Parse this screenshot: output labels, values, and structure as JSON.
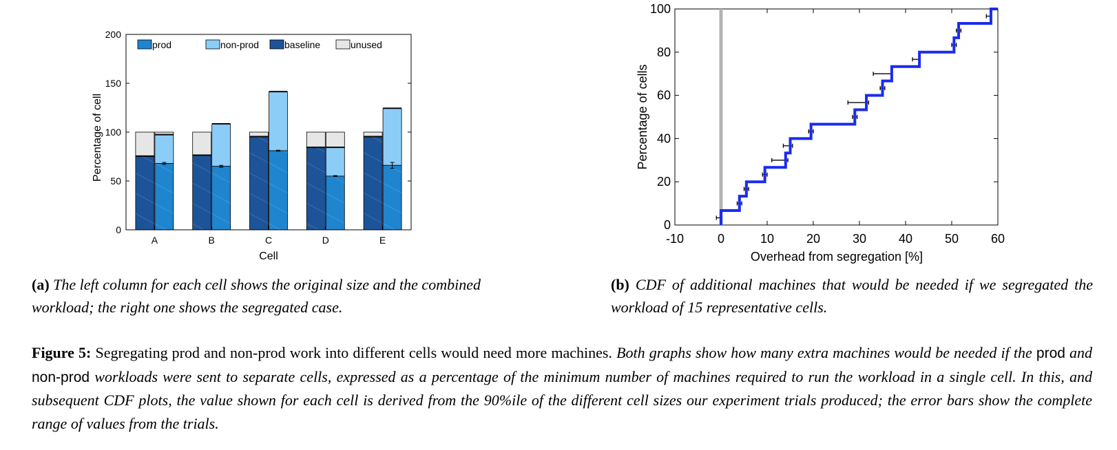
{
  "chart_data": [
    {
      "type": "bar",
      "xlabel": "Cell",
      "ylabel": "Percentage of cell",
      "ylim": [
        0,
        200
      ],
      "yticks": [
        0,
        50,
        100,
        150,
        200
      ],
      "categories": [
        "A",
        "B",
        "C",
        "D",
        "E"
      ],
      "legend": {
        "placement": "top",
        "entries": [
          "prod",
          "non-prod",
          "baseline",
          "unused"
        ]
      },
      "colors": {
        "baseline": "#1d5499",
        "prod": "#1f85cf",
        "non_prod": "#8ccdf7",
        "unused": "#e6e6e6"
      },
      "combined": {
        "baseline": [
          75,
          76,
          95,
          84,
          95
        ],
        "unused": [
          25,
          24,
          5,
          16,
          5
        ],
        "total": [
          100,
          100,
          100,
          100,
          100
        ]
      },
      "segregated": {
        "prod": [
          68,
          65,
          81,
          55,
          66
        ],
        "non_prod_top": [
          97,
          108,
          141,
          84,
          124
        ],
        "unused_top": [
          100,
          108,
          141,
          100,
          124
        ],
        "prod_error": [
          1,
          1,
          0.5,
          0.5,
          3
        ]
      }
    },
    {
      "type": "line",
      "step": true,
      "xlabel": "Overhead from segregation [%]",
      "ylabel": "Percentage of cells",
      "xlim": [
        -10,
        60
      ],
      "ylim": [
        0,
        100
      ],
      "xticks": [
        -10,
        0,
        10,
        20,
        30,
        40,
        50,
        60
      ],
      "yticks": [
        0,
        20,
        40,
        60,
        80,
        100
      ],
      "line_color": "#1a2bf0",
      "vertical_marker_x": 0,
      "steps": [
        {
          "x": 0,
          "y": 6.67
        },
        {
          "x": 4,
          "y": 13.33
        },
        {
          "x": 5.5,
          "y": 20
        },
        {
          "x": 9.5,
          "y": 26.67
        },
        {
          "x": 14,
          "y": 33.33
        },
        {
          "x": 15,
          "y": 40
        },
        {
          "x": 19.5,
          "y": 46.67
        },
        {
          "x": 29,
          "y": 53.33
        },
        {
          "x": 31.5,
          "y": 60
        },
        {
          "x": 35,
          "y": 66.67
        },
        {
          "x": 37,
          "y": 73.33
        },
        {
          "x": 43,
          "y": 80
        },
        {
          "x": 50.5,
          "y": 86.67
        },
        {
          "x": 51.5,
          "y": 93.33
        },
        {
          "x": 58.5,
          "y": 100
        }
      ],
      "error_bars": [
        {
          "y": 3.33,
          "xmin": -1,
          "xmax": 0
        },
        {
          "y": 10,
          "xmin": 3.5,
          "xmax": 4.5
        },
        {
          "y": 16.67,
          "xmin": 5,
          "xmax": 6
        },
        {
          "y": 23.33,
          "xmin": 9,
          "xmax": 10
        },
        {
          "y": 30,
          "xmin": 11,
          "xmax": 14.5
        },
        {
          "y": 36.67,
          "xmin": 13.5,
          "xmax": 15.5
        },
        {
          "y": 43.33,
          "xmin": 19,
          "xmax": 20
        },
        {
          "y": 50,
          "xmin": 28.5,
          "xmax": 29.5
        },
        {
          "y": 56.67,
          "xmin": 27.5,
          "xmax": 32
        },
        {
          "y": 63.33,
          "xmin": 34.5,
          "xmax": 35.5
        },
        {
          "y": 70,
          "xmin": 33,
          "xmax": 37
        },
        {
          "y": 76.67,
          "xmin": 41.5,
          "xmax": 43
        },
        {
          "y": 83.33,
          "xmin": 50,
          "xmax": 51
        },
        {
          "y": 90,
          "xmin": 51,
          "xmax": 52
        },
        {
          "y": 96.67,
          "xmin": 57.5,
          "xmax": 58.5
        }
      ]
    }
  ],
  "captions": {
    "a_label": "(a)",
    "a_text": "The left column for each cell shows the original size and the combined workload; the right one shows the segregated case.",
    "b_label": "(b)",
    "b_text": "CDF of additional machines that would be needed if we segregated the workload of 15 representative cells.",
    "figure_label": "Figure 5:",
    "figure_sentence": "Segregating prod and non-prod work into different cells would need more machines.",
    "figure_text_1": "Both graphs show how many extra machines would be needed if the",
    "figure_term_1": "prod",
    "figure_text_2": "and",
    "figure_term_2": "non-prod",
    "figure_text_3": "workloads were sent to separate cells, expressed as a percentage of the minimum number of machines required to run the workload in a single cell. In this, and subsequent CDF plots, the value shown for each cell is derived from the 90%ile of the different cell sizes our experiment trials produced; the error bars show the complete range of values from the trials."
  }
}
